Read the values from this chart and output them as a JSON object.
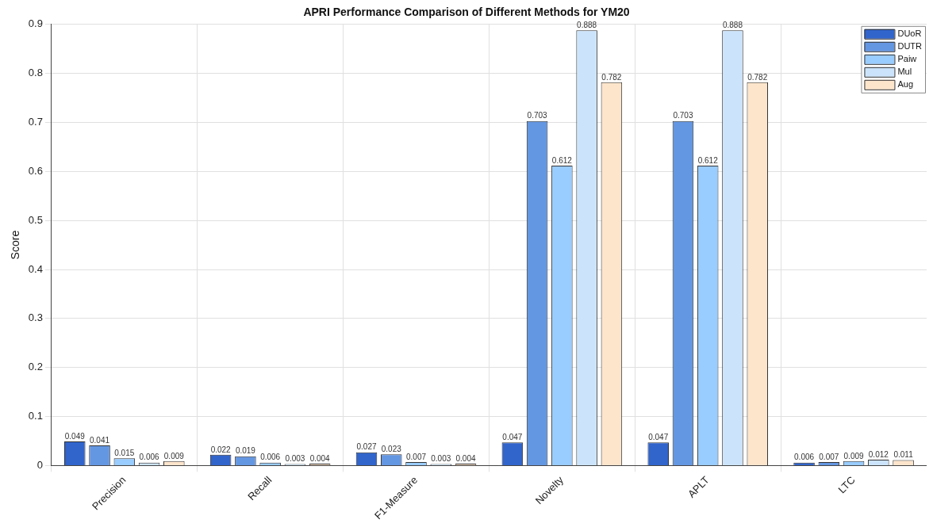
{
  "chart_data": {
    "type": "bar",
    "title": "APRI Performance Comparison of Different Methods for YM20",
    "ylabel": "Score",
    "categories": [
      "Precision",
      "Recall",
      "F1-Measure",
      "Novelty",
      "APLT",
      "LTC"
    ],
    "series": [
      {
        "name": "DUoR",
        "color": "#3165cc",
        "values": [
          0.049,
          0.022,
          0.027,
          0.047,
          0.047,
          0.006
        ]
      },
      {
        "name": "DUTR",
        "color": "#6497e2",
        "values": [
          0.041,
          0.019,
          0.023,
          0.703,
          0.703,
          0.007
        ]
      },
      {
        "name": "Paiw",
        "color": "#99ccff",
        "values": [
          0.015,
          0.006,
          0.007,
          0.612,
          0.612,
          0.009
        ]
      },
      {
        "name": "Mul",
        "color": "#cce4fb",
        "values": [
          0.006,
          0.003,
          0.003,
          0.888,
          0.888,
          0.012
        ]
      },
      {
        "name": "Aug",
        "color": "#fde5cc",
        "values": [
          0.009,
          0.004,
          0.004,
          0.782,
          0.782,
          0.011
        ]
      }
    ],
    "ylim": [
      0,
      0.9
    ],
    "yticks": [
      0,
      0.1,
      0.2,
      0.3,
      0.4,
      0.5,
      0.6,
      0.7,
      0.8,
      0.9
    ],
    "grid": true,
    "legend": "top right",
    "data_labels": true
  }
}
